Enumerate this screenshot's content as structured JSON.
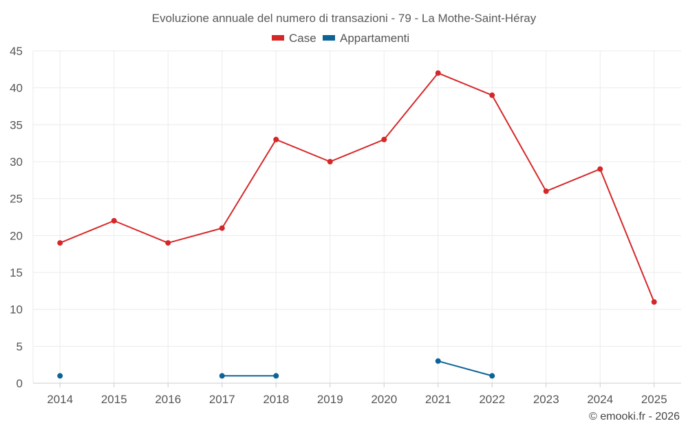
{
  "chart_data": {
    "type": "line",
    "title": "Evoluzione annuale del numero di transazioni - 79 - La Mothe-Saint-Héray",
    "categories": [
      "2014",
      "2015",
      "2016",
      "2017",
      "2018",
      "2019",
      "2020",
      "2021",
      "2022",
      "2023",
      "2024",
      "2025"
    ],
    "ylim": [
      0,
      45
    ],
    "yticks": [
      "0",
      "5",
      "10",
      "15",
      "20",
      "25",
      "30",
      "35",
      "40",
      "45"
    ],
    "legend_position": "top-center",
    "grid": true,
    "series": [
      {
        "name": "Case",
        "color": "#d62728",
        "values": [
          19,
          22,
          19,
          21,
          33,
          30,
          33,
          42,
          39,
          26,
          29,
          11
        ]
      },
      {
        "name": "Appartamenti",
        "color": "#0b6396",
        "values": [
          1,
          null,
          null,
          1,
          1,
          null,
          null,
          3,
          1,
          null,
          null,
          null
        ]
      }
    ]
  },
  "credit": "© emooki.fr - 2026"
}
